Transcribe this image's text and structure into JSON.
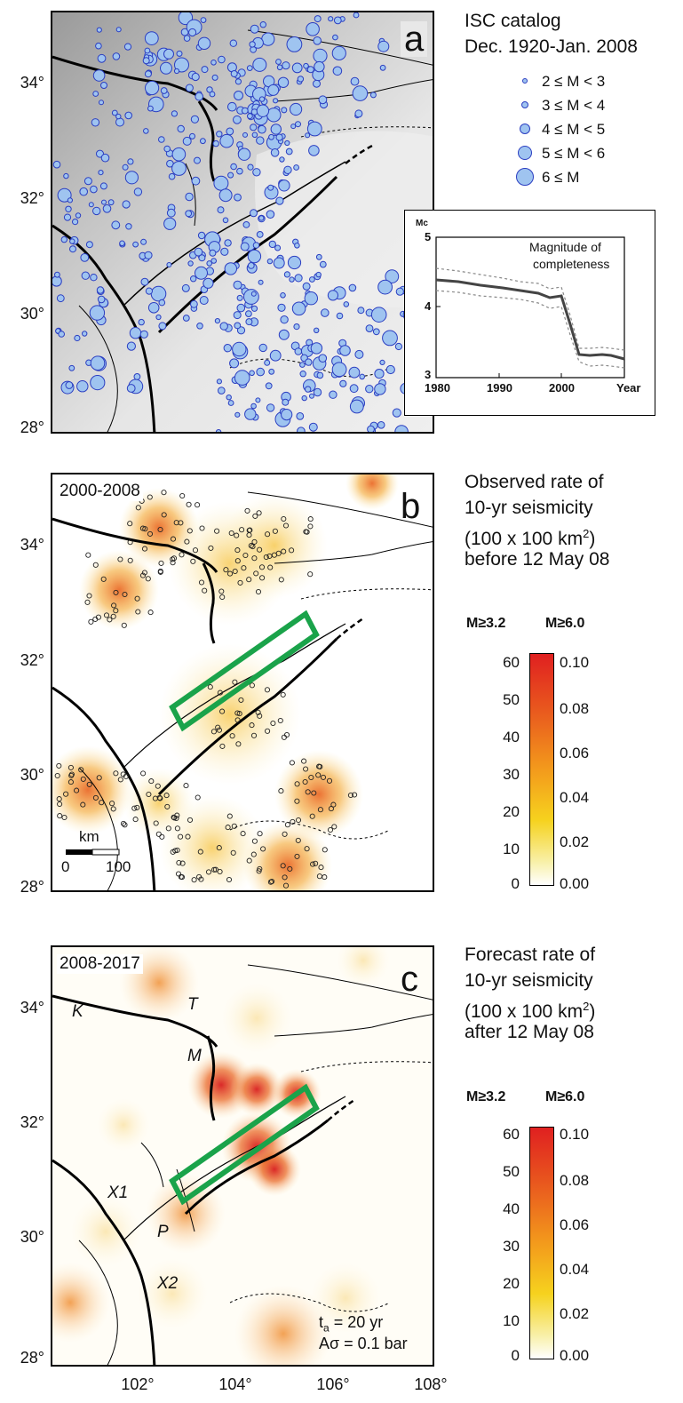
{
  "panel_a": {
    "letter": "a",
    "title_line1": "ISC catalog",
    "title_line2": "Dec. 1920-Jan. 2008",
    "legend": [
      {
        "label": "2 ≤ M < 3"
      },
      {
        "label": "3 ≤ M < 4"
      },
      {
        "label": "4 ≤ M < 5"
      },
      {
        "label": "5 ≤ M < 6"
      },
      {
        "label": "6 ≤ M"
      }
    ],
    "marker_fill": "#9fc4f0",
    "marker_edge": "#2b3ec1",
    "y_ticks": [
      "34°",
      "32°",
      "30°",
      "28°"
    ],
    "inset": {
      "y_axis_title": "Mc",
      "title_line1": "Magnitude of",
      "title_line2": "completeness",
      "y_ticks": [
        "5",
        "4",
        "3"
      ],
      "x_ticks": [
        "1980",
        "1990",
        "2000"
      ],
      "x_axis_title": "Year"
    }
  },
  "panel_b": {
    "letter": "b",
    "period": "2000-2008",
    "text_line1": "Observed rate of",
    "text_line2": "10-yr seismicity",
    "text_line3": "(100 x 100 km",
    "text_sup": "2",
    "text_line3_end": ")",
    "text_line4": "before 12 May 08",
    "cb_head_left": "M≥3.2",
    "cb_head_right": "M≥6.0",
    "cb_left_ticks": [
      "60",
      "50",
      "40",
      "30",
      "20",
      "10",
      "0"
    ],
    "cb_right_ticks": [
      "0.10",
      "0.08",
      "0.06",
      "0.04",
      "0.02",
      "0.00"
    ],
    "scale_unit": "km",
    "scale_start": "0",
    "scale_end": "100",
    "y_ticks": [
      "34°",
      "32°",
      "30°",
      "28°"
    ]
  },
  "panel_c": {
    "letter": "c",
    "period": "2008-2017",
    "text_line1": "Forecast rate of",
    "text_line2": "10-yr seismicity",
    "text_line3": "(100 x 100 km",
    "text_sup": "2",
    "text_line3_end": ")",
    "text_line4": "after 12 May 08",
    "cb_head_left": "M≥3.2",
    "cb_head_right": "M≥6.0",
    "cb_left_ticks": [
      "60",
      "50",
      "40",
      "30",
      "20",
      "10",
      "0"
    ],
    "cb_right_ticks": [
      "0.10",
      "0.08",
      "0.06",
      "0.04",
      "0.02",
      "0.00"
    ],
    "fault_labels": [
      "K",
      "T",
      "M",
      "X1",
      "P",
      "X2"
    ],
    "param1_sym": "t",
    "param1_sub": "a",
    "param1_val": " = 20 yr",
    "param2": "Aσ = 0.1 bar",
    "y_ticks": [
      "34°",
      "32°",
      "30°",
      "28°"
    ],
    "x_ticks": [
      "102°",
      "104°",
      "106°",
      "108°"
    ]
  },
  "colors": {
    "rupture_box": "#1aa34a",
    "high_rate": "#e02020",
    "low_rate": "#ffffff"
  }
}
